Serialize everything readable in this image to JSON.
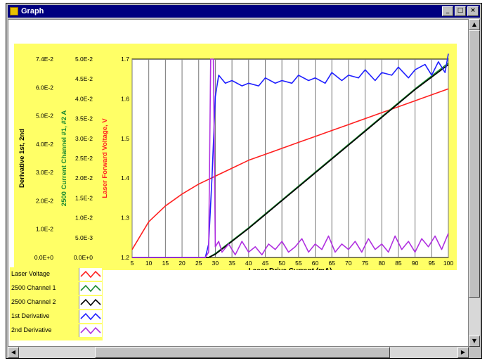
{
  "window": {
    "title": "Graph"
  },
  "colors": {
    "laser_voltage": "#ff2020",
    "channel1": "#1a8a30",
    "channel2": "#000000",
    "first_derivative": "#2020ff",
    "second_derivative": "#b030e0",
    "panel": "#ffff66"
  },
  "legend": {
    "items": [
      {
        "label": "Laser Voltage",
        "color": "#ff2020"
      },
      {
        "label": "2500 Channel 1",
        "color": "#1a8a30"
      },
      {
        "label": "2500 Channel 2",
        "color": "#000000"
      },
      {
        "label": "1st Derivative",
        "color": "#2020ff"
      },
      {
        "label": "2nd Derivative",
        "color": "#b030e0"
      }
    ]
  },
  "chart_data": {
    "type": "line",
    "xlabel": "Laser Drive Current (mA)",
    "x_ticks": [
      5,
      10,
      15,
      20,
      25,
      30,
      35,
      40,
      45,
      50,
      55,
      60,
      65,
      70,
      75,
      80,
      85,
      90,
      95,
      100
    ],
    "xlim": [
      5,
      100
    ],
    "grid": "vertical",
    "axes": [
      {
        "id": "derivative",
        "label": "Derivative 1st, 2nd",
        "color": "#000000",
        "ticks": [
          "7.4E-2",
          "6.0E-2",
          "5.0E-2",
          "4.0E-2",
          "3.0E-2",
          "2.0E-2",
          "1.0E-2",
          "0.0E+0"
        ]
      },
      {
        "id": "current",
        "label": "2500 Current Channel #1, #2 A",
        "color": "#1a8a30",
        "ticks": [
          "5.0E-2",
          "4.5E-2",
          "4.0E-2",
          "3.5E-2",
          "3.0E-2",
          "2.5E-2",
          "2.0E-2",
          "1.5E-2",
          "1.0E-2",
          "5.0E-3",
          "0.0E+0"
        ]
      },
      {
        "id": "voltage",
        "label": "Laser Forward Voltage, V",
        "color": "#ff2020",
        "ticks": [
          "1.7",
          "1.6",
          "1.5",
          "1.4",
          "1.3",
          "1.2"
        ],
        "ylim": [
          1.2,
          1.7
        ]
      }
    ],
    "series": [
      {
        "axis": "voltage",
        "color": "#ff2020",
        "x": [
          5,
          10,
          15,
          20,
          25,
          30,
          35,
          40,
          45,
          50,
          55,
          60,
          65,
          70,
          75,
          80,
          85,
          90,
          95,
          100
        ],
        "y": [
          1.22,
          1.29,
          1.33,
          1.36,
          1.385,
          1.405,
          1.425,
          1.445,
          1.46,
          1.475,
          1.49,
          1.505,
          1.52,
          1.535,
          1.55,
          1.565,
          1.58,
          1.595,
          1.61,
          1.625
        ]
      },
      {
        "axis": "current",
        "color": "#1a8a30",
        "x": [
          5,
          25,
          28,
          30,
          40,
          50,
          60,
          70,
          80,
          90,
          100
        ],
        "y": [
          0.0,
          0.0,
          0.0,
          0.001,
          0.0075,
          0.0145,
          0.0215,
          0.0285,
          0.0355,
          0.0425,
          0.049
        ]
      },
      {
        "axis": "current",
        "color": "#000000",
        "x": [
          5,
          25,
          28,
          30,
          40,
          50,
          60,
          70,
          80,
          90,
          100
        ],
        "y": [
          0.0,
          0.0,
          0.0,
          0.0008,
          0.0073,
          0.0143,
          0.0213,
          0.0283,
          0.0353,
          0.0423,
          0.0486
        ]
      },
      {
        "axis": "derivative",
        "color": "#2020ff",
        "x": [
          5,
          25,
          27,
          28,
          29,
          30,
          31,
          33,
          35,
          38,
          40,
          43,
          45,
          48,
          50,
          53,
          55,
          58,
          60,
          63,
          65,
          68,
          70,
          73,
          75,
          78,
          80,
          83,
          85,
          88,
          90,
          93,
          95,
          97,
          99,
          100
        ],
        "y": [
          0.0,
          0.0,
          0.0,
          0.005,
          0.03,
          0.06,
          0.068,
          0.065,
          0.066,
          0.064,
          0.065,
          0.064,
          0.067,
          0.065,
          0.066,
          0.065,
          0.068,
          0.066,
          0.067,
          0.065,
          0.069,
          0.066,
          0.068,
          0.067,
          0.07,
          0.066,
          0.069,
          0.068,
          0.071,
          0.067,
          0.07,
          0.072,
          0.068,
          0.073,
          0.069,
          0.076
        ]
      },
      {
        "axis": "derivative",
        "color": "#b030e0",
        "x": [
          5,
          27,
          28,
          28.6,
          29.4,
          30,
          31,
          32,
          34,
          36,
          38,
          40,
          42,
          44,
          46,
          48,
          50,
          52,
          54,
          56,
          58,
          60,
          62,
          64,
          66,
          68,
          70,
          72,
          74,
          76,
          78,
          80,
          82,
          84,
          86,
          88,
          90,
          92,
          94,
          96,
          98,
          100
        ],
        "y": [
          0.0,
          0.0,
          0.002,
          0.074,
          0.074,
          0.004,
          0.006,
          0.002,
          0.005,
          0.001,
          0.006,
          0.002,
          0.004,
          0.001,
          0.005,
          0.003,
          0.006,
          0.002,
          0.004,
          0.007,
          0.002,
          0.005,
          0.003,
          0.008,
          0.002,
          0.005,
          0.003,
          0.006,
          0.002,
          0.007,
          0.003,
          0.005,
          0.002,
          0.008,
          0.003,
          0.006,
          0.002,
          0.007,
          0.004,
          0.008,
          0.003,
          0.009
        ]
      }
    ]
  }
}
